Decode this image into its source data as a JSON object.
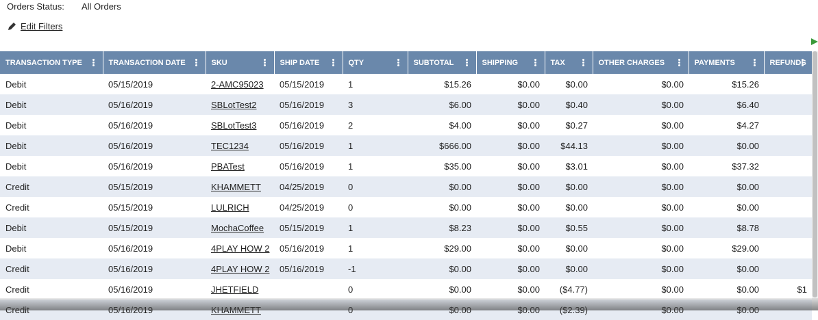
{
  "header": {
    "status_label": "Orders Status:",
    "status_value": "All Orders",
    "edit_filters": "Edit Filters"
  },
  "table": {
    "columns": [
      "TRANSACTION TYPE",
      "TRANSACTION DATE",
      "SKU",
      "SHIP DATE",
      "QTY",
      "SUBTOTAL",
      "SHIPPING",
      "TAX",
      "OTHER CHARGES",
      "PAYMENTS",
      "REFUNDS"
    ],
    "rows": [
      [
        "Debit",
        "05/15/2019",
        "2-AMC95023",
        "05/15/2019",
        "1",
        "$15.26",
        "$0.00",
        "$0.00",
        "$0.00",
        "$15.26",
        null
      ],
      [
        "Debit",
        "05/16/2019",
        "SBLotTest2",
        "05/16/2019",
        "3",
        "$6.00",
        "$0.00",
        "$0.40",
        "$0.00",
        "$6.40",
        null
      ],
      [
        "Debit",
        "05/16/2019",
        "SBLotTest3",
        "05/16/2019",
        "2",
        "$4.00",
        "$0.00",
        "$0.27",
        "$0.00",
        "$4.27",
        null
      ],
      [
        "Debit",
        "05/16/2019",
        "TEC1234",
        "05/16/2019",
        "1",
        "$666.00",
        "$0.00",
        "$44.13",
        "$0.00",
        "$0.00",
        null
      ],
      [
        "Debit",
        "05/16/2019",
        "PBATest",
        "05/16/2019",
        "1",
        "$35.00",
        "$0.00",
        "$3.01",
        "$0.00",
        "$37.32",
        null
      ],
      [
        "Credit",
        "05/15/2019",
        "KHAMMETT",
        "04/25/2019",
        "0",
        "$0.00",
        "$0.00",
        "$0.00",
        "$0.00",
        "$0.00",
        null
      ],
      [
        "Credit",
        "05/15/2019",
        "LULRICH",
        "04/25/2019",
        "0",
        "$0.00",
        "$0.00",
        "$0.00",
        "$0.00",
        "$0.00",
        null
      ],
      [
        "Debit",
        "05/15/2019",
        "MochaCoffee",
        "05/15/2019",
        "1",
        "$8.23",
        "$0.00",
        "$0.55",
        "$0.00",
        "$8.78",
        null
      ],
      [
        "Debit",
        "05/16/2019",
        "4PLAY HOW 2",
        "05/16/2019",
        "1",
        "$29.00",
        "$0.00",
        "$0.00",
        "$0.00",
        "$29.00",
        null
      ],
      [
        "Credit",
        "05/16/2019",
        "4PLAY HOW 2",
        "05/16/2019",
        "-1",
        "$0.00",
        "$0.00",
        "$0.00",
        "$0.00",
        "$0.00",
        null
      ],
      [
        "Credit",
        "05/16/2019",
        "JHETFIELD",
        null,
        "0",
        "$0.00",
        "$0.00",
        "($4.77)",
        "$0.00",
        "$0.00",
        "$1"
      ],
      [
        "Credit",
        "05/16/2019",
        "KHAMMETT",
        null,
        "0",
        "$0.00",
        "$0.00",
        "($2.39)",
        "$0.00",
        "$0.00",
        null
      ]
    ]
  }
}
